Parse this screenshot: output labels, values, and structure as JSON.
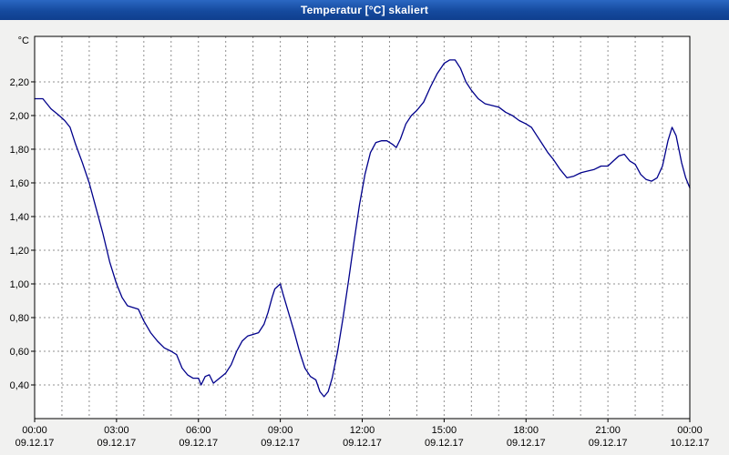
{
  "window": {
    "title_bar": {
      "title": "Temperatur [°C] skaliert"
    }
  },
  "colors": {
    "titlebar_blue": "#154a9e",
    "series_line": "#00008b",
    "gridline": "#909090",
    "plot_frame": "#000000",
    "plot_background": "#ffffff"
  },
  "chart_data": {
    "type": "line",
    "title": "Temperatur [°C] skaliert",
    "ylabel": "°C",
    "xlabel": "",
    "legend": "none",
    "grid": {
      "style": "dashed",
      "x_interval_hours": 1,
      "y_interval": 0.2
    },
    "xlim": [
      0,
      24
    ],
    "ylim": [
      0.2,
      2.47
    ],
    "y_ticks": [
      {
        "value": 2.2,
        "label": "2,20"
      },
      {
        "value": 2.0,
        "label": "2,00"
      },
      {
        "value": 1.8,
        "label": "1,80"
      },
      {
        "value": 1.6,
        "label": "1,60"
      },
      {
        "value": 1.4,
        "label": "1,40"
      },
      {
        "value": 1.2,
        "label": "1,20"
      },
      {
        "value": 1.0,
        "label": "1,00"
      },
      {
        "value": 0.8,
        "label": "0,80"
      },
      {
        "value": 0.6,
        "label": "0,60"
      },
      {
        "value": 0.4,
        "label": "0,40"
      }
    ],
    "x_ticks": [
      {
        "hour": 0,
        "time": "00:00",
        "date": "09.12.17"
      },
      {
        "hour": 3,
        "time": "03:00",
        "date": "09.12.17"
      },
      {
        "hour": 6,
        "time": "06:00",
        "date": "09.12.17"
      },
      {
        "hour": 9,
        "time": "09:00",
        "date": "09.12.17"
      },
      {
        "hour": 12,
        "time": "12:00",
        "date": "09.12.17"
      },
      {
        "hour": 15,
        "time": "15:00",
        "date": "09.12.17"
      },
      {
        "hour": 18,
        "time": "18:00",
        "date": "09.12.17"
      },
      {
        "hour": 21,
        "time": "21:00",
        "date": "09.12.17"
      },
      {
        "hour": 24,
        "time": "00:00",
        "date": "10.12.17"
      }
    ],
    "series": [
      {
        "name": "Temperatur [°C] skaliert",
        "color": "#00008b",
        "x": [
          0,
          0.3,
          0.6,
          0.9,
          1.1,
          1.3,
          1.5,
          1.75,
          2,
          2.25,
          2.5,
          2.75,
          3,
          3.2,
          3.4,
          3.6,
          3.8,
          4,
          4.25,
          4.5,
          4.75,
          5,
          5.2,
          5.4,
          5.6,
          5.8,
          6,
          6.1,
          6.25,
          6.4,
          6.55,
          6.7,
          6.85,
          7,
          7.2,
          7.4,
          7.6,
          7.8,
          8,
          8.2,
          8.4,
          8.55,
          8.7,
          8.8,
          9,
          9.1,
          9.3,
          9.5,
          9.7,
          9.9,
          10.1,
          10.3,
          10.45,
          10.6,
          10.75,
          10.9,
          11.1,
          11.3,
          11.5,
          11.7,
          11.9,
          12.1,
          12.3,
          12.5,
          12.7,
          12.9,
          13.1,
          13.25,
          13.4,
          13.6,
          13.8,
          14,
          14.25,
          14.5,
          14.75,
          15,
          15.2,
          15.4,
          15.6,
          15.8,
          16,
          16.25,
          16.5,
          16.75,
          17,
          17.25,
          17.5,
          17.75,
          18,
          18.2,
          18.4,
          18.6,
          18.8,
          19,
          19.25,
          19.5,
          19.75,
          20,
          20.25,
          20.5,
          20.75,
          21,
          21.2,
          21.4,
          21.6,
          21.8,
          22,
          22.2,
          22.4,
          22.6,
          22.8,
          23,
          23.2,
          23.35,
          23.5,
          23.7,
          23.85,
          24
        ],
        "y": [
          2.1,
          2.1,
          2.04,
          2.0,
          1.97,
          1.93,
          1.83,
          1.72,
          1.6,
          1.45,
          1.3,
          1.13,
          1.0,
          0.92,
          0.87,
          0.86,
          0.85,
          0.78,
          0.71,
          0.66,
          0.62,
          0.6,
          0.58,
          0.5,
          0.46,
          0.44,
          0.44,
          0.4,
          0.45,
          0.46,
          0.41,
          0.43,
          0.45,
          0.47,
          0.52,
          0.6,
          0.66,
          0.69,
          0.7,
          0.71,
          0.76,
          0.83,
          0.92,
          0.97,
          1.0,
          0.94,
          0.83,
          0.72,
          0.6,
          0.5,
          0.45,
          0.43,
          0.36,
          0.33,
          0.36,
          0.44,
          0.6,
          0.8,
          1.02,
          1.25,
          1.47,
          1.65,
          1.78,
          1.84,
          1.85,
          1.85,
          1.83,
          1.81,
          1.86,
          1.95,
          2.0,
          2.03,
          2.08,
          2.17,
          2.25,
          2.31,
          2.33,
          2.33,
          2.28,
          2.2,
          2.15,
          2.1,
          2.07,
          2.06,
          2.05,
          2.02,
          2.0,
          1.97,
          1.95,
          1.93,
          1.88,
          1.83,
          1.78,
          1.74,
          1.68,
          1.63,
          1.64,
          1.66,
          1.67,
          1.68,
          1.7,
          1.7,
          1.73,
          1.76,
          1.77,
          1.73,
          1.71,
          1.65,
          1.62,
          1.61,
          1.63,
          1.7,
          1.85,
          1.93,
          1.88,
          1.72,
          1.63,
          1.57
        ]
      }
    ]
  }
}
